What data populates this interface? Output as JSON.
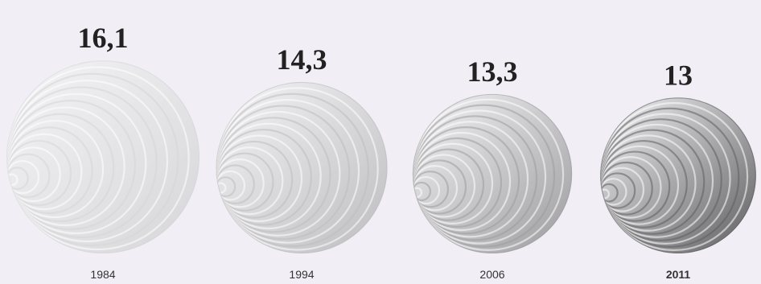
{
  "chart_data": {
    "type": "bubble",
    "categories": [
      "1984",
      "1994",
      "2006",
      "2011"
    ],
    "values": [
      16.1,
      14.3,
      13.3,
      13
    ],
    "value_labels": [
      "16,1",
      "14,3",
      "13,3",
      "13"
    ],
    "colors": [
      "#d6d6d9",
      "#bdbdc0",
      "#9c9c9f",
      "#5e5e60"
    ]
  }
}
